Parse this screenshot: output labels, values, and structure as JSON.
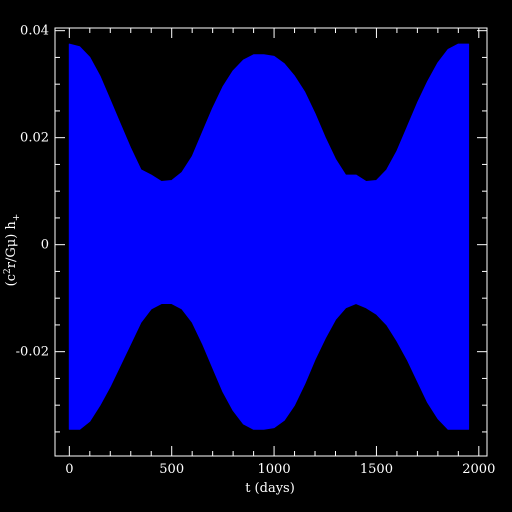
{
  "chart_data": {
    "type": "area",
    "title": "",
    "xlabel": "t (days)",
    "ylabel_parts": [
      "(c",
      "2",
      "r/Gμ) h",
      "+"
    ],
    "xlim": [
      -70,
      2040
    ],
    "ylim": [
      -0.0395,
      0.0405
    ],
    "x_ticks": [
      0,
      500,
      1000,
      1500,
      2000
    ],
    "x_tick_labels": [
      "0",
      "500",
      "1000",
      "1500",
      "2000"
    ],
    "y_ticks": [
      -0.02,
      0,
      0.02,
      0.04
    ],
    "y_tick_labels": [
      "-0.02",
      "0",
      "0.02",
      "0.04"
    ],
    "grid": false,
    "fill_color": "#0000ff",
    "background": "#000000",
    "foreground": "#ffffff",
    "series": [
      {
        "x": [
          0,
          50,
          100,
          150,
          200,
          250,
          300,
          350,
          400,
          450,
          500,
          550,
          600,
          650,
          700,
          750,
          800,
          850,
          900,
          950,
          1000,
          1050,
          1100,
          1150,
          1200,
          1250,
          1300,
          1350,
          1400,
          1450,
          1500,
          1550,
          1600,
          1650,
          1700,
          1750,
          1800,
          1850,
          1900,
          1950
        ],
        "upper": [
          0.0375,
          0.037,
          0.035,
          0.0315,
          0.027,
          0.0225,
          0.018,
          0.014,
          0.013,
          0.0118,
          0.012,
          0.0135,
          0.0165,
          0.021,
          0.0255,
          0.0295,
          0.0325,
          0.0345,
          0.0355,
          0.0355,
          0.0352,
          0.0338,
          0.0315,
          0.0285,
          0.0245,
          0.02,
          0.016,
          0.013,
          0.013,
          0.0118,
          0.012,
          0.014,
          0.0175,
          0.022,
          0.0265,
          0.0305,
          0.034,
          0.0365,
          0.0375,
          0.0375
        ],
        "lower": [
          -0.0345,
          -0.0345,
          -0.033,
          -0.03,
          -0.0265,
          -0.0225,
          -0.0185,
          -0.0145,
          -0.012,
          -0.011,
          -0.011,
          -0.012,
          -0.0145,
          -0.0185,
          -0.023,
          -0.0275,
          -0.031,
          -0.0335,
          -0.0345,
          -0.0345,
          -0.0342,
          -0.0328,
          -0.03,
          -0.026,
          -0.0215,
          -0.0175,
          -0.014,
          -0.0118,
          -0.011,
          -0.0118,
          -0.013,
          -0.015,
          -0.018,
          -0.0215,
          -0.0255,
          -0.0295,
          -0.0325,
          -0.0345,
          -0.0345,
          -0.0345
        ]
      }
    ]
  }
}
